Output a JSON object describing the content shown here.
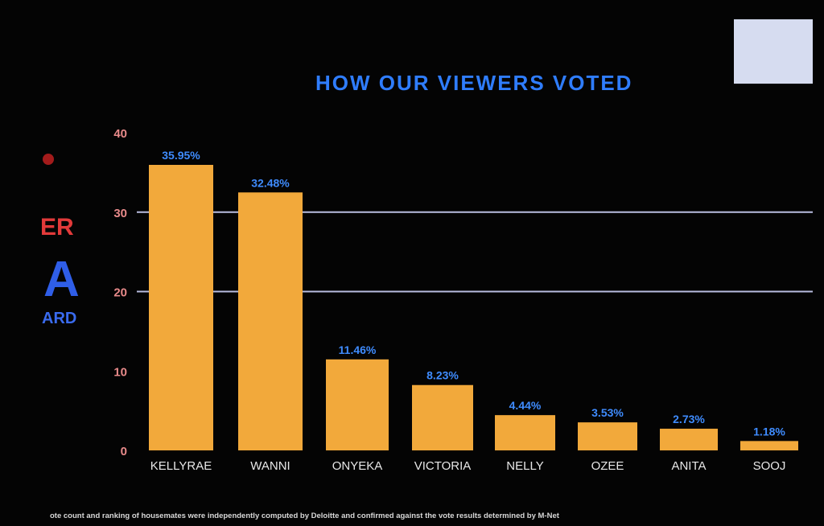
{
  "chart_data": {
    "type": "bar",
    "title": "HOW OUR VIEWERS VOTED",
    "categories": [
      "KELLYRAE",
      "WANNI",
      "ONYEKA",
      "VICTORIA",
      "NELLY",
      "OZEE",
      "ANITA",
      "SOOJ"
    ],
    "values": [
      35.95,
      32.48,
      11.46,
      8.23,
      4.44,
      3.53,
      2.73,
      1.18
    ],
    "value_labels": [
      "35.95%",
      "32.48%",
      "11.46%",
      "8.23%",
      "4.44%",
      "3.53%",
      "2.73%",
      "1.18%"
    ],
    "y_ticks": [
      0,
      10,
      20,
      30,
      40
    ],
    "ylim": [
      0,
      40
    ],
    "gridlines_at": [
      20,
      30
    ],
    "xlabel": "",
    "ylabel": ""
  },
  "footnote": "ote count and ranking of housemates were independently computed by Deloitte and confirmed against the vote results determined by M-Net",
  "colors": {
    "bar": "#f2a93b",
    "value_label": "#3f8cff",
    "title": "#2f7dff",
    "tick": "#e88a8a",
    "category": "#e8e8e8",
    "grid": "#b9bde0"
  }
}
